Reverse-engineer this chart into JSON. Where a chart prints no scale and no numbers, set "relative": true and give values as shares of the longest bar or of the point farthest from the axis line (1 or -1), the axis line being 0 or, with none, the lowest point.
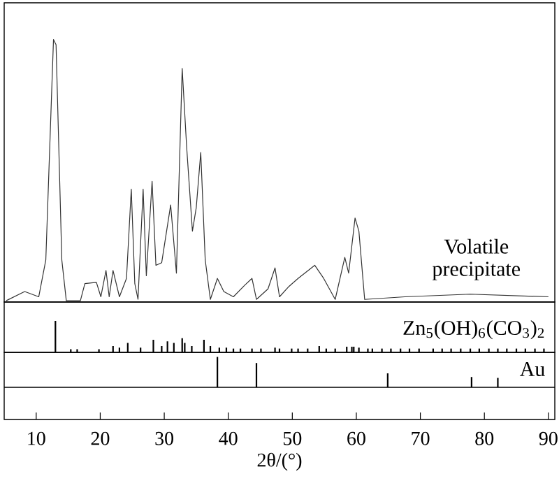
{
  "chart_data": [
    {
      "type": "line",
      "relative": true,
      "tick_labels": false,
      "xlim": [
        5,
        91
      ],
      "series": [
        {
          "name": "Volatile precipitate",
          "color": "#333333",
          "x": [
            5.3,
            8.2,
            10.4,
            11.5,
            12.7,
            13.1,
            14.0,
            14.7,
            16.9,
            17.6,
            19.4,
            20.1,
            20.9,
            21.4,
            22.0,
            23.0,
            24.1,
            24.85,
            25.4,
            25.9,
            26.7,
            27.2,
            28.1,
            28.7,
            29.6,
            31.0,
            31.9,
            32.8,
            33.5,
            34.4,
            35.0,
            35.7,
            36.4,
            37.2,
            38.3,
            39.3,
            40.8,
            42.6,
            43.7,
            44.4,
            46.2,
            47.3,
            48.0,
            49.5,
            50.9,
            53.5,
            54.9,
            56.7,
            58.2,
            58.8,
            59.8,
            60.4,
            61.3,
            67.6,
            77.8,
            90.0
          ],
          "values": [
            0.005,
            0.04,
            0.02,
            0.16,
            1.0,
            0.98,
            0.16,
            0.005,
            0.005,
            0.07,
            0.075,
            0.02,
            0.12,
            0.02,
            0.12,
            0.02,
            0.09,
            0.43,
            0.07,
            0.01,
            0.43,
            0.1,
            0.46,
            0.14,
            0.15,
            0.37,
            0.11,
            0.89,
            0.59,
            0.27,
            0.36,
            0.57,
            0.16,
            0.01,
            0.09,
            0.04,
            0.02,
            0.065,
            0.09,
            0.01,
            0.05,
            0.13,
            0.02,
            0.06,
            0.09,
            0.14,
            0.09,
            0.01,
            0.17,
            0.11,
            0.32,
            0.27,
            0.01,
            0.02,
            0.03,
            0.02
          ]
        }
      ]
    },
    {
      "type": "bar",
      "relative": true,
      "tick_labels": false,
      "xlim": [
        5,
        91
      ],
      "series": [
        {
          "name": "Zn$_{5}$(OH)$_{6}$(CO$_{3}$)$_{2}$",
          "color": "#000000",
          "x": [
            13.0,
            15.4,
            16.4,
            19.8,
            22.0,
            23.0,
            24.3,
            26.3,
            28.3,
            29.6,
            30.5,
            31.5,
            32.8,
            33.2,
            34.3,
            36.2,
            37.2,
            38.6,
            39.7,
            40.8,
            41.9,
            43.7,
            45.1,
            47.3,
            48.0,
            49.9,
            50.9,
            52.4,
            54.2,
            55.3,
            56.7,
            58.5,
            59.3,
            59.6,
            60.4,
            61.8,
            62.5,
            64.0,
            65.4,
            66.9,
            68.3,
            69.8,
            72.0,
            73.4,
            74.8,
            76.3,
            77.8,
            79.2,
            80.7,
            82.1,
            83.5,
            85.0,
            86.4,
            87.9,
            89.3
          ],
          "values": [
            1,
            0.1,
            0.1,
            0.1,
            0.2,
            0.15,
            0.3,
            0.15,
            0.4,
            0.2,
            0.35,
            0.3,
            0.45,
            0.3,
            0.2,
            0.4,
            0.2,
            0.15,
            0.15,
            0.12,
            0.12,
            0.12,
            0.12,
            0.15,
            0.12,
            0.12,
            0.12,
            0.12,
            0.2,
            0.12,
            0.12,
            0.18,
            0.18,
            0.18,
            0.15,
            0.12,
            0.12,
            0.12,
            0.12,
            0.12,
            0.12,
            0.12,
            0.12,
            0.12,
            0.12,
            0.12,
            0.12,
            0.12,
            0.12,
            0.12,
            0.12,
            0.12,
            0.12,
            0.12,
            0.12
          ]
        }
      ]
    },
    {
      "type": "bar",
      "relative": true,
      "tick_labels": "x",
      "xlim": [
        5,
        91
      ],
      "xticks": [
        10,
        20,
        30,
        40,
        50,
        60,
        70,
        80,
        90
      ],
      "xlabel": "2θ/(°)",
      "series": [
        {
          "name": "Au",
          "color": "#000000",
          "x": [
            38.3,
            44.4,
            64.9,
            78.0,
            82.1
          ],
          "values": [
            1,
            0.8,
            0.46,
            0.34,
            0.31
          ]
        }
      ]
    }
  ]
}
